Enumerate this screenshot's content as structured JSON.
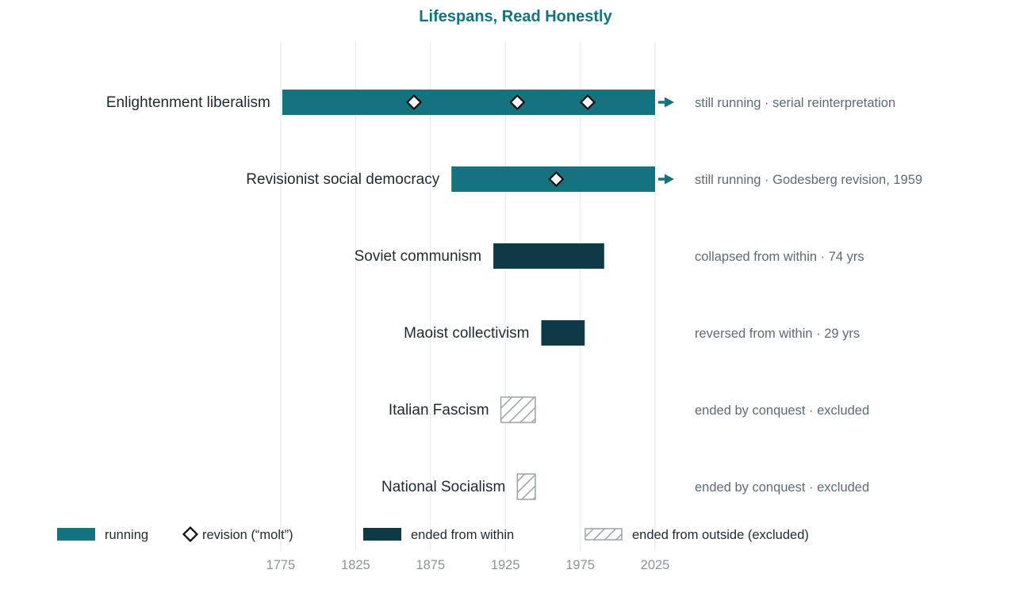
{
  "chart_data": {
    "type": "timeline",
    "title": "Lifespans, Read Honestly",
    "xlim": [
      1775,
      2025
    ],
    "xticks": [
      1775,
      1825,
      1875,
      1925,
      1975,
      2025
    ],
    "grid": true,
    "colors": {
      "running": "#15737f",
      "ended_within": "#0e3a45",
      "outside": "#9aa3a9",
      "title": "#15737f",
      "tick": "#8a949b"
    },
    "rows": [
      {
        "label": "Enlightenment liberalism",
        "start": 1776,
        "end": 2025,
        "status": "running",
        "revisions": [
          1864,
          1933,
          1980
        ],
        "annotation": "still running · serial reinterpretation"
      },
      {
        "label": "Revisionist social democracy",
        "start": 1889,
        "end": 2025,
        "status": "running",
        "revisions": [
          1959
        ],
        "annotation": "still running · Godesberg revision, 1959"
      },
      {
        "label": "Soviet communism",
        "start": 1917,
        "end": 1991,
        "status": "ended_within",
        "revisions": [],
        "annotation": "collapsed from within · 74 yrs"
      },
      {
        "label": "Maoist collectivism",
        "start": 1949,
        "end": 1978,
        "status": "ended_within",
        "revisions": [],
        "annotation": "reversed from within · 29 yrs"
      },
      {
        "label": "Italian Fascism",
        "start": 1922,
        "end": 1945,
        "status": "outside",
        "revisions": [],
        "annotation": "ended by conquest · excluded"
      },
      {
        "label": "National Socialism",
        "start": 1933,
        "end": 1945,
        "status": "outside",
        "revisions": [],
        "annotation": "ended by conquest · excluded"
      }
    ],
    "legend": {
      "placement": "bottom",
      "items": [
        {
          "key": "running",
          "label": "running"
        },
        {
          "key": "revision",
          "label": "revision (“molt”)"
        },
        {
          "key": "ended_within",
          "label": "ended from within"
        },
        {
          "key": "outside",
          "label": "ended from outside (excluded)"
        }
      ]
    }
  }
}
